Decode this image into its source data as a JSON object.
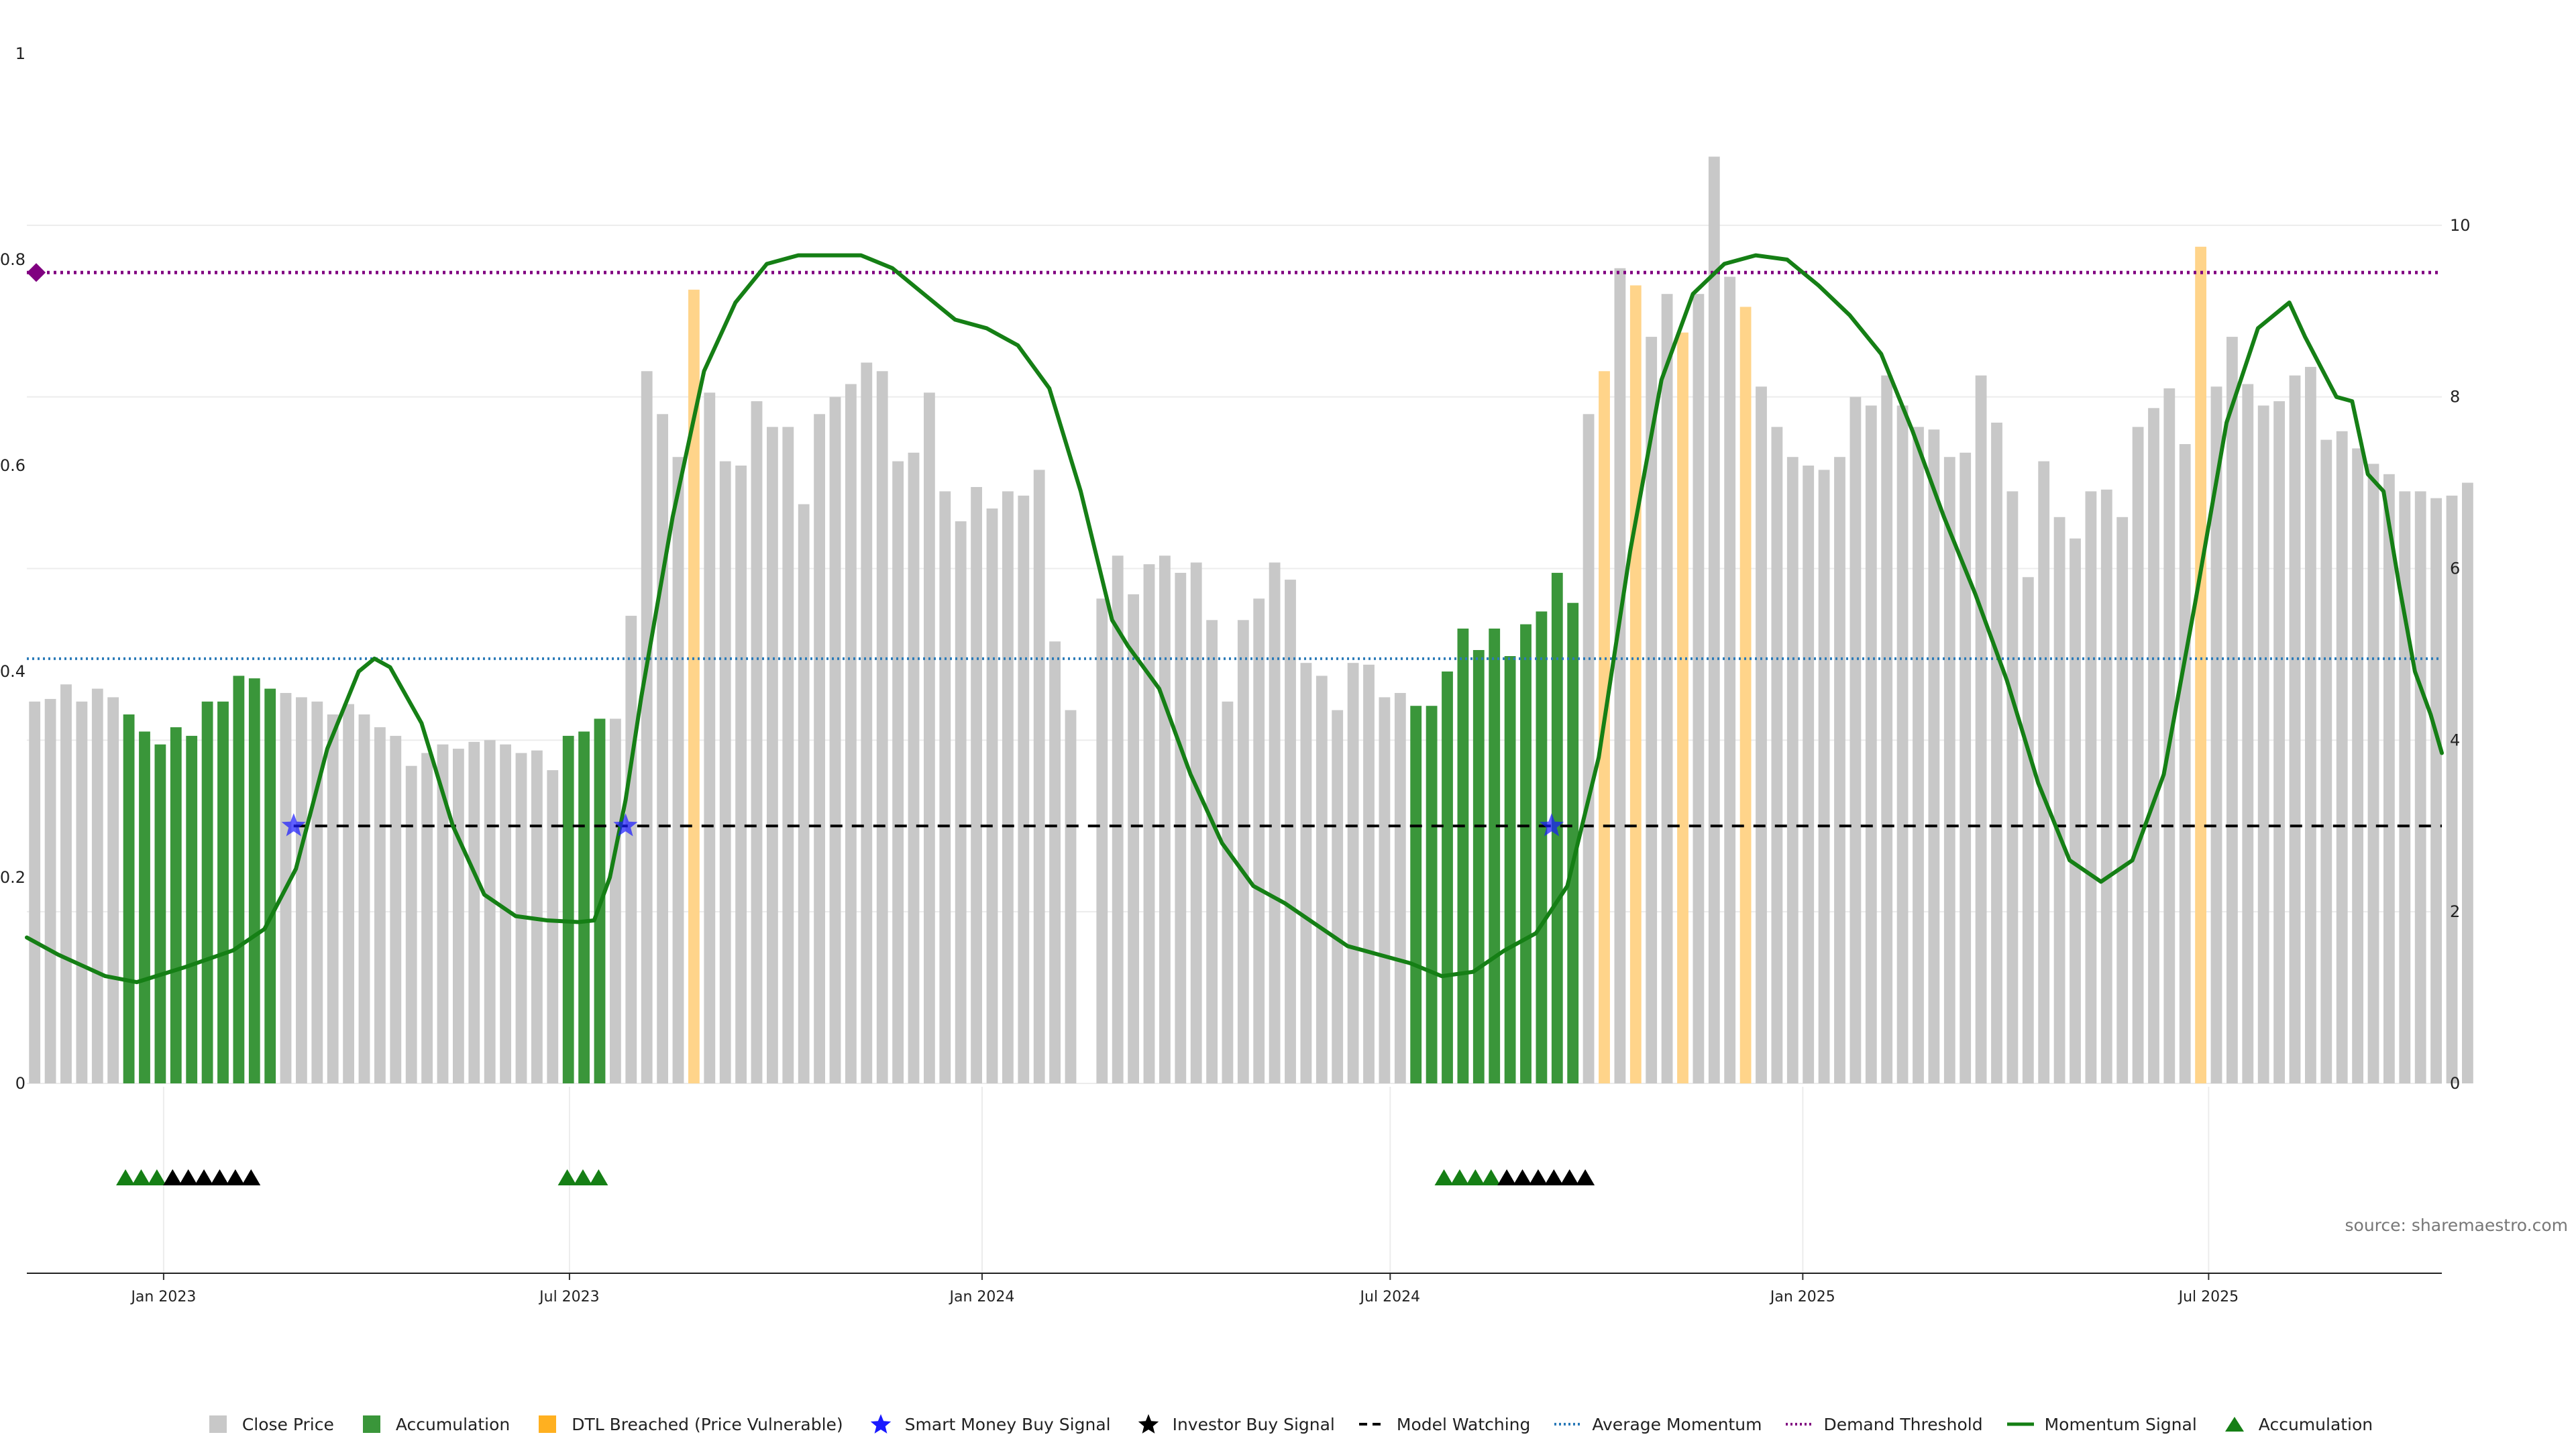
{
  "source_text": "source: sharemaestro.com",
  "chart_data": {
    "type": "bar",
    "title": "",
    "xlabel": "",
    "ylabel": "",
    "ylim_left": [
      0,
      1
    ],
    "ylim_right": [
      0,
      12
    ],
    "left_ticks": [
      "0",
      "0.2",
      "0.4",
      "0.6",
      "0.8",
      "1"
    ],
    "right_ticks": [
      "0",
      "2",
      "4",
      "6",
      "8",
      "10"
    ],
    "x_ticks": [
      "Jan 2023",
      "Jul 2023",
      "Jan 2024",
      "Jul 2024",
      "Jan 2025",
      "Jul 2025"
    ],
    "x_start": "2022-11-01",
    "x_end": "2025-10-13",
    "bar_start": "2022-11-01",
    "bar_interval_days": 7,
    "grid": true,
    "legend_position": "bottom",
    "colors": {
      "close": "#c8c8c8",
      "accumulation": "#3a963a",
      "dtl": "#ffd48a",
      "smart_money": "#1a1aff",
      "investor": "#000000",
      "model_watching": "#000000",
      "average_momentum": "#2a7ab8",
      "demand_threshold": "#800080",
      "momentum": "#157f15",
      "accum_marker": "#157f15"
    },
    "series": [
      {
        "name": "Close Price",
        "axis": "right",
        "values": [
          4.45,
          4.48,
          4.65,
          4.45,
          4.6,
          4.5,
          4.3,
          4.1,
          3.95,
          4.15,
          4.05,
          4.45,
          4.45,
          4.75,
          4.72,
          4.6,
          4.55,
          4.5,
          4.45,
          4.3,
          4.42,
          4.3,
          4.15,
          4.05,
          3.7,
          3.85,
          3.95,
          3.9,
          3.98,
          4.0,
          3.95,
          3.85,
          3.88,
          3.65,
          4.05,
          4.1,
          4.25,
          4.25,
          5.45,
          8.3,
          7.8,
          7.3,
          9.25,
          8.05,
          7.25,
          7.2,
          7.95,
          7.65,
          7.65,
          6.75,
          7.8,
          8.0,
          8.15,
          8.4,
          8.3,
          7.25,
          7.35,
          8.05,
          6.9,
          6.55,
          6.95,
          6.7,
          6.9,
          6.85,
          7.15,
          5.15,
          4.35,
          null,
          5.65,
          6.15,
          5.7,
          6.05,
          6.15,
          5.95,
          6.07,
          5.4,
          4.45,
          5.4,
          5.65,
          6.07,
          5.87,
          4.9,
          4.75,
          4.35,
          4.9,
          4.88,
          4.5,
          4.55,
          4.4,
          4.4,
          4.8,
          5.3,
          5.05,
          5.3,
          4.98,
          5.35,
          5.5,
          5.95,
          5.6,
          7.8,
          8.3,
          9.5,
          9.3,
          8.7,
          9.2,
          8.75,
          9.2,
          10.8,
          9.4,
          9.05,
          8.12,
          7.65,
          7.3,
          7.2,
          7.15,
          7.3,
          8.0,
          7.9,
          8.25,
          7.9,
          7.65,
          7.62,
          7.3,
          7.35,
          8.25,
          7.7,
          6.9,
          5.9,
          7.25,
          6.6,
          6.35,
          6.9,
          6.92,
          6.6,
          7.65,
          7.87,
          8.1,
          7.45,
          9.75,
          8.12,
          8.7,
          8.15,
          7.9,
          7.95,
          8.25,
          8.35,
          7.5,
          7.6,
          7.4,
          7.22,
          7.1,
          6.9,
          6.9,
          6.82,
          6.85,
          7.0
        ]
      },
      {
        "name": "Accumulation",
        "axis": "right",
        "indices": [
          6,
          7,
          8,
          9,
          10,
          11,
          12,
          13,
          14,
          15,
          34,
          35,
          36,
          88,
          89,
          90,
          91,
          92,
          93,
          94,
          95,
          96,
          97,
          98
        ]
      },
      {
        "name": "DTL Breached (Price Vulnerable)",
        "axis": "right",
        "indices": [
          42,
          100,
          102,
          105,
          109,
          138
        ]
      },
      {
        "name": "Momentum Signal",
        "axis": "right",
        "points": [
          [
            "2022-11-01",
            1.7
          ],
          [
            "2022-11-15",
            1.5
          ],
          [
            "2022-12-06",
            1.25
          ],
          [
            "2022-12-20",
            1.18
          ],
          [
            "2023-01-10",
            1.35
          ],
          [
            "2023-02-01",
            1.55
          ],
          [
            "2023-02-15",
            1.8
          ],
          [
            "2023-03-01",
            2.5
          ],
          [
            "2023-03-15",
            3.9
          ],
          [
            "2023-03-29",
            4.8
          ],
          [
            "2023-04-05",
            4.95
          ],
          [
            "2023-04-12",
            4.85
          ],
          [
            "2023-04-26",
            4.2
          ],
          [
            "2023-05-10",
            3.0
          ],
          [
            "2023-05-24",
            2.2
          ],
          [
            "2023-06-07",
            1.95
          ],
          [
            "2023-06-21",
            1.9
          ],
          [
            "2023-07-05",
            1.88
          ],
          [
            "2023-07-12",
            1.9
          ],
          [
            "2023-07-19",
            2.4
          ],
          [
            "2023-07-26",
            3.3
          ],
          [
            "2023-08-02",
            4.5
          ],
          [
            "2023-08-16",
            6.6
          ],
          [
            "2023-08-30",
            8.3
          ],
          [
            "2023-09-13",
            9.1
          ],
          [
            "2023-09-27",
            9.55
          ],
          [
            "2023-10-11",
            9.65
          ],
          [
            "2023-10-25",
            9.65
          ],
          [
            "2023-11-08",
            9.65
          ],
          [
            "2023-11-22",
            9.5
          ],
          [
            "2023-12-06",
            9.2
          ],
          [
            "2023-12-20",
            8.9
          ],
          [
            "2024-01-03",
            8.8
          ],
          [
            "2024-01-17",
            8.6
          ],
          [
            "2024-01-31",
            8.1
          ],
          [
            "2024-02-14",
            6.9
          ],
          [
            "2024-02-28",
            5.4
          ],
          [
            "2024-03-06",
            5.1
          ],
          [
            "2024-03-20",
            4.6
          ],
          [
            "2024-04-03",
            3.6
          ],
          [
            "2024-04-17",
            2.8
          ],
          [
            "2024-05-01",
            2.3
          ],
          [
            "2024-05-15",
            2.1
          ],
          [
            "2024-05-29",
            1.85
          ],
          [
            "2024-06-12",
            1.6
          ],
          [
            "2024-06-26",
            1.5
          ],
          [
            "2024-07-10",
            1.4
          ],
          [
            "2024-07-24",
            1.25
          ],
          [
            "2024-08-07",
            1.3
          ],
          [
            "2024-08-21",
            1.55
          ],
          [
            "2024-09-04",
            1.75
          ],
          [
            "2024-09-18",
            2.3
          ],
          [
            "2024-10-02",
            3.8
          ],
          [
            "2024-10-16",
            6.2
          ],
          [
            "2024-10-30",
            8.2
          ],
          [
            "2024-11-13",
            9.2
          ],
          [
            "2024-11-27",
            9.55
          ],
          [
            "2024-12-11",
            9.65
          ],
          [
            "2024-12-25",
            9.6
          ],
          [
            "2025-01-08",
            9.3
          ],
          [
            "2025-01-22",
            8.95
          ],
          [
            "2025-02-05",
            8.5
          ],
          [
            "2025-02-19",
            7.6
          ],
          [
            "2025-03-05",
            6.6
          ],
          [
            "2025-03-19",
            5.7
          ],
          [
            "2025-04-02",
            4.7
          ],
          [
            "2025-04-16",
            3.5
          ],
          [
            "2025-04-30",
            2.6
          ],
          [
            "2025-05-14",
            2.35
          ],
          [
            "2025-05-28",
            2.6
          ],
          [
            "2025-06-11",
            3.6
          ],
          [
            "2025-06-25",
            5.6
          ],
          [
            "2025-07-09",
            7.7
          ],
          [
            "2025-07-23",
            8.8
          ],
          [
            "2025-08-06",
            9.1
          ],
          [
            "2025-08-13",
            8.7
          ],
          [
            "2025-08-27",
            8.0
          ],
          [
            "2025-09-03",
            7.95
          ],
          [
            "2025-09-10",
            7.1
          ],
          [
            "2025-09-17",
            6.9
          ],
          [
            "2025-09-24",
            5.8
          ],
          [
            "2025-10-01",
            4.8
          ],
          [
            "2025-10-08",
            4.3
          ],
          [
            "2025-10-13",
            3.85
          ]
        ]
      },
      {
        "name": "Average Momentum",
        "axis": "right",
        "value": 4.95
      },
      {
        "name": "Demand Threshold",
        "axis": "right",
        "value": 9.45
      },
      {
        "name": "Model Watching",
        "axis": "left",
        "value": 0.25,
        "from": "2023-02-28"
      },
      {
        "name": "Smart Money Buy Signal",
        "axis": "left",
        "value": 0.25,
        "dates": [
          "2023-02-28",
          "2023-07-26",
          "2024-09-11"
        ]
      },
      {
        "name": "Investor Buy Signal",
        "dates": [
          "2023-01-05",
          "2023-01-12",
          "2023-01-19",
          "2023-01-26",
          "2023-02-02",
          "2023-02-09",
          "2024-08-22",
          "2024-08-29",
          "2024-09-05",
          "2024-09-12",
          "2024-09-19",
          "2024-09-26"
        ]
      },
      {
        "name": "Accumulation",
        "marker": "triangle",
        "dates": [
          "2022-12-15",
          "2022-12-22",
          "2022-12-29",
          "2023-01-05",
          "2023-06-30",
          "2023-07-07",
          "2023-07-14",
          "2024-07-25",
          "2024-08-01",
          "2024-08-08",
          "2024-08-15"
        ]
      }
    ],
    "demand_marker": {
      "axis": "right",
      "value": 9.45,
      "date": "2022-11-01"
    }
  },
  "legend": [
    {
      "label": "Close Price",
      "symbol": "square",
      "color": "#c8c8c8"
    },
    {
      "label": "Accumulation",
      "symbol": "square",
      "color": "#3a963a"
    },
    {
      "label": "DTL Breached (Price Vulnerable)",
      "symbol": "square",
      "color": "#ffb020"
    },
    {
      "label": "Smart Money Buy Signal",
      "symbol": "star",
      "color": "#1a1aff"
    },
    {
      "label": "Investor Buy Signal",
      "symbol": "star",
      "color": "#000000"
    },
    {
      "label": "Model Watching",
      "symbol": "dashed",
      "color": "#000000"
    },
    {
      "label": "Average Momentum",
      "symbol": "dotted",
      "color": "#2a7ab8"
    },
    {
      "label": "Demand Threshold",
      "symbol": "dotted",
      "color": "#800080"
    },
    {
      "label": "Momentum Signal",
      "symbol": "line",
      "color": "#157f15"
    },
    {
      "label": "Accumulation",
      "symbol": "triangle",
      "color": "#157f15"
    }
  ]
}
